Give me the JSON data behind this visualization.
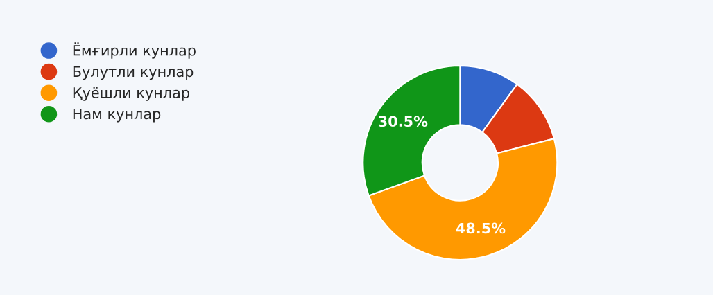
{
  "chart_data": {
    "type": "donut",
    "categories": [
      "Ёмғирли кунлар",
      "Булутли кунлар",
      "Қуёшли кунлар",
      "Нам кунлар"
    ],
    "values": [
      10,
      11,
      48.5,
      30.5
    ],
    "colors": [
      "#3366cc",
      "#dc3912",
      "#ff9900",
      "#109618"
    ],
    "value_labels": [
      null,
      null,
      "48.5%",
      "30.5%"
    ],
    "legend": "top left"
  }
}
